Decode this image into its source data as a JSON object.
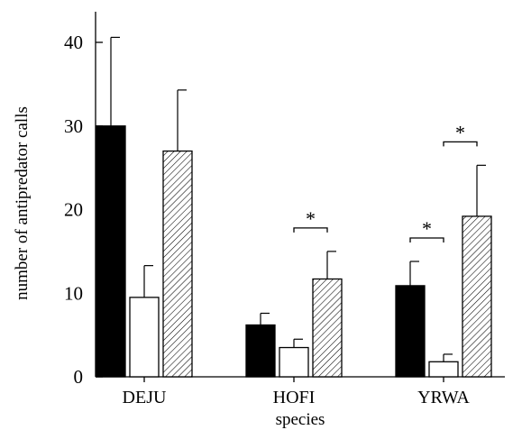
{
  "chart_data": {
    "type": "bar",
    "title": "",
    "xlabel": "species",
    "ylabel": "number of antipredator calls",
    "ylim": [
      0,
      40
    ],
    "yticks": [
      0,
      10,
      20,
      30,
      40
    ],
    "grid": false,
    "legend": "none",
    "categories": [
      "DEJU",
      "HOFI",
      "YRWA"
    ],
    "series": [
      {
        "fill": "solid",
        "color": "#000000",
        "values": [
          30,
          6.2,
          10.9
        ],
        "error": [
          10.6,
          1.4,
          2.9
        ]
      },
      {
        "fill": "open",
        "color": "#ffffff",
        "values": [
          9.5,
          3.5,
          1.8
        ],
        "error": [
          3.8,
          1.0,
          0.9
        ]
      },
      {
        "fill": "hatched",
        "color": "#ffffff",
        "values": [
          27,
          11.7,
          19.2
        ],
        "error": [
          7.3,
          3.3,
          6.1
        ]
      }
    ],
    "significance": [
      {
        "category": "HOFI",
        "between": [
          1,
          2
        ],
        "label": "*"
      },
      {
        "category": "YRWA",
        "between": [
          0,
          1
        ],
        "label": "*"
      },
      {
        "category": "YRWA",
        "between": [
          1,
          2
        ],
        "label": "*"
      }
    ]
  }
}
